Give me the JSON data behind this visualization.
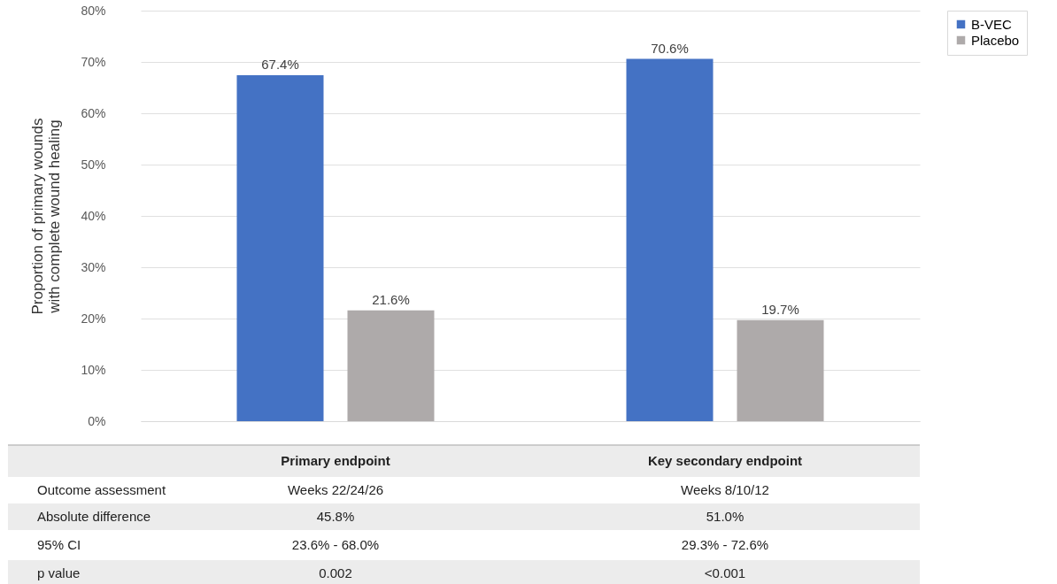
{
  "chart_data": {
    "type": "bar",
    "ylabel": "Proportion of primary wounds\nwith complete wound healing",
    "categories": [
      "Primary endpoint",
      "Key secondary endpoint"
    ],
    "series": [
      {
        "name": "B-VEC",
        "color": "#4472c4",
        "values": [
          67.4,
          70.6
        ],
        "value_labels": [
          "67.4%",
          "70.6%"
        ]
      },
      {
        "name": "Placebo",
        "color": "#aeaaaa",
        "values": [
          21.6,
          19.7
        ],
        "value_labels": [
          "21.6%",
          "19.7%"
        ]
      }
    ],
    "ylim": [
      0,
      80
    ],
    "yticks": [
      {
        "value": 0,
        "label": "0%"
      },
      {
        "value": 10,
        "label": "10%"
      },
      {
        "value": 20,
        "label": "20%"
      },
      {
        "value": 30,
        "label": "30%"
      },
      {
        "value": 40,
        "label": "40%"
      },
      {
        "value": 50,
        "label": "50%"
      },
      {
        "value": 60,
        "label": "60%"
      },
      {
        "value": 70,
        "label": "70%"
      },
      {
        "value": 80,
        "label": "80%"
      }
    ],
    "grid": "y",
    "legend": "right",
    "annotations": [
      "Outcome assessment",
      "Weeks 22/24/26",
      "Weeks 8/10/12",
      "Absolute difference",
      "45.8%",
      "51.0%",
      "95% CI",
      "23.6% - 68.0%",
      "29.3% - 72.6%",
      "p value",
      "0.002",
      "<0.001"
    ]
  }
}
